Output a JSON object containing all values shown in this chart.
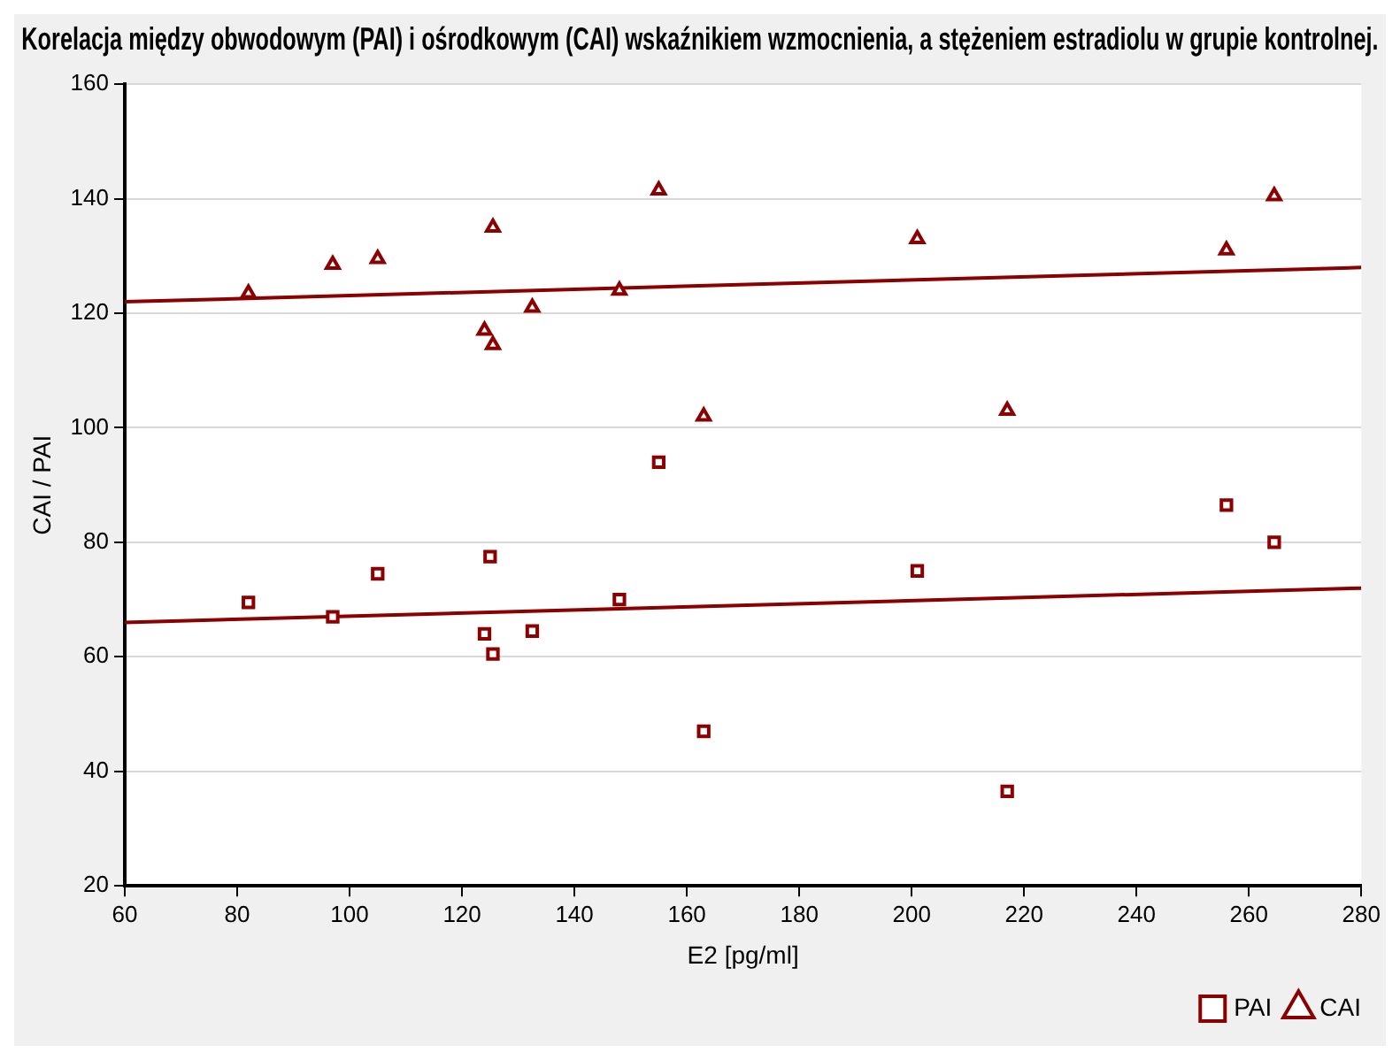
{
  "chart_data": {
    "type": "scatter",
    "title": "Korelacja między obwodowym (PAI) i ośrodkowym (CAI) wskaźnikiem wzmocnienia, a stężeniem estradiolu w grupie kontrolnej.",
    "xlabel": "E2 [pg/ml]",
    "ylabel": "CAI / PAI",
    "xlim": [
      60,
      280
    ],
    "xticks": [
      60,
      80,
      100,
      120,
      140,
      160,
      180,
      200,
      220,
      240,
      260,
      280
    ],
    "ylim": [
      20,
      160
    ],
    "yticks": [
      20,
      40,
      60,
      80,
      100,
      120,
      140,
      160
    ],
    "grid": "y",
    "legend": "bottom right",
    "series": [
      {
        "name": "PAI",
        "color": "#8b0000",
        "marker": "square",
        "x": [
          82,
          97,
          105,
          124,
          125,
          125.5,
          132.5,
          148,
          155,
          163,
          201,
          217,
          256,
          264.5
        ],
        "values": [
          69.5,
          67,
          74.5,
          64,
          77.5,
          60.5,
          64.5,
          70,
          94,
          47,
          75,
          36.5,
          86.5,
          80
        ]
      },
      {
        "name": "CAI",
        "color": "#8b0000",
        "marker": "triangle",
        "x": [
          82,
          97,
          105,
          124,
          125.5,
          125.5,
          132.5,
          148,
          155,
          163,
          201,
          217,
          256,
          264.5
        ],
        "values": [
          123.5,
          128.5,
          129.5,
          117,
          135,
          114.5,
          121,
          124,
          141.5,
          102,
          133,
          103,
          131,
          140.5
        ]
      },
      {
        "type": "line",
        "color": "#8b0000",
        "x": [
          60,
          280
        ],
        "values": [
          66,
          72
        ]
      },
      {
        "type": "line",
        "color": "#8b0000",
        "x": [
          60,
          280
        ],
        "values": [
          122,
          128
        ]
      }
    ]
  }
}
